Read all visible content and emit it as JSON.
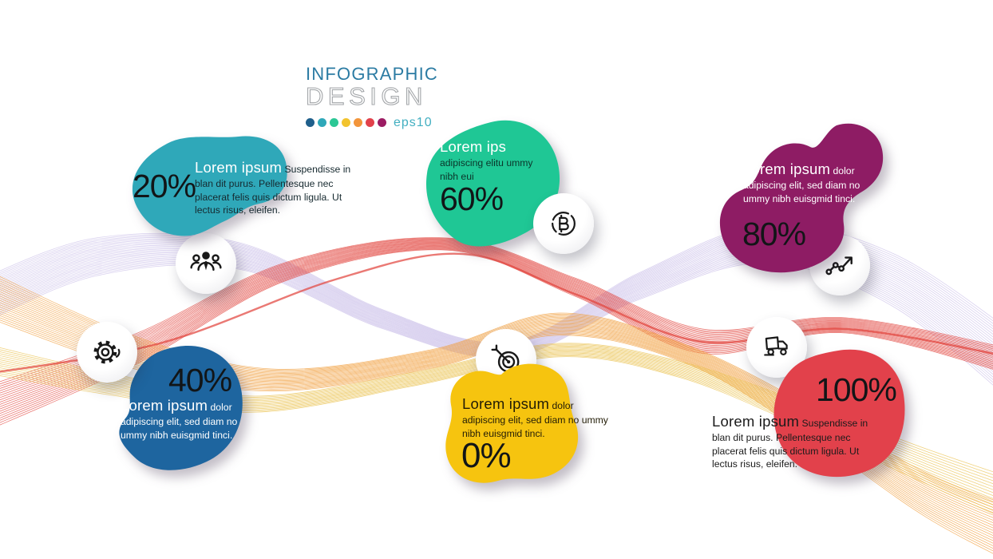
{
  "header": {
    "title": "INFOGRAPHIC",
    "subtitle": "DESIGN",
    "eps_label": "eps10",
    "dot_colors": [
      "#1f5f8b",
      "#2fa8b9",
      "#2bc795",
      "#f2c32e",
      "#f2953b",
      "#e2414b",
      "#9c1c63"
    ]
  },
  "waves": {
    "colors": {
      "lavender": "#cbbfe9",
      "red": "#e2453f",
      "orange": "#f1a03f",
      "yellow": "#eac24f"
    }
  },
  "items": [
    {
      "percent": "20%",
      "title": "Lorem ipsum",
      "body": "Suspendisse in blan dit purus. Pellentesque nec placerat felis quis dictum ligula. Ut lectus risus, eleifen.",
      "color": "#2fa8b9",
      "icon": "team"
    },
    {
      "percent": "60%",
      "title": "Lorem ips",
      "body": "adipiscing elitu ummy nibh eui",
      "color": "#1fc795",
      "icon": "bitcoin"
    },
    {
      "percent": "80%",
      "title": "Lorem ipsum",
      "body": "dolor adipiscing elit, sed diam no ummy nibh euisgmid tinci.",
      "color": "#8e1c64",
      "icon": "chart-growth"
    },
    {
      "percent": "40%",
      "title": "Lorem ipsum",
      "body": "dolor adipiscing elit, sed diam no ummy nibh euisgmid tinci.",
      "color": "#1e659f",
      "icon": "gear"
    },
    {
      "percent": "0%",
      "title": "Lorem ipsum",
      "body": "dolor adipiscing elit, sed diam no ummy nibh euisgmid tinci.",
      "color": "#f6c40f",
      "icon": "target"
    },
    {
      "percent": "100%",
      "title": "Lorem ipsum",
      "body": "Suspendisse in blan dit purus. Pellentesque nec placerat felis quis dictum ligula. Ut lectus risus, eleifen.",
      "color": "#e2414b",
      "icon": "delivery-truck"
    }
  ]
}
